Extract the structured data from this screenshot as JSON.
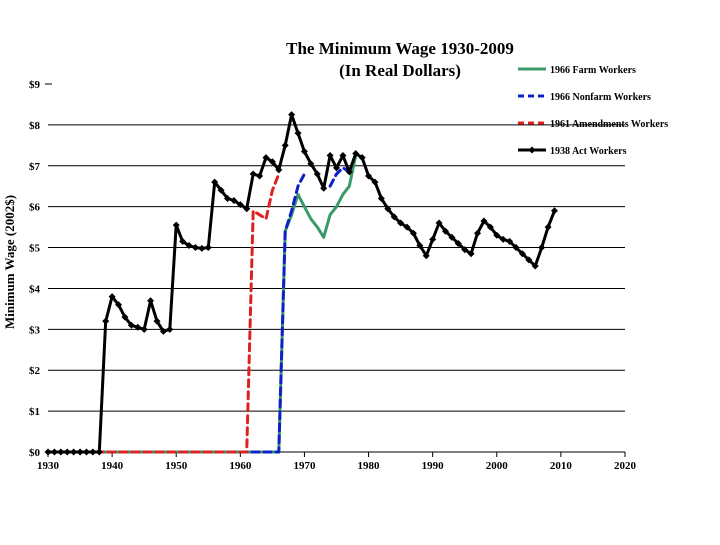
{
  "chart_data": {
    "type": "line",
    "title": "The Minimum Wage 1930-2009",
    "subtitle": "(In Real Dollars)",
    "xlabel": "",
    "ylabel": "Minimum Wage (2002$)",
    "xlim": [
      1930,
      2020
    ],
    "ylim": [
      0,
      9
    ],
    "xticks": [
      "1930",
      "1940",
      "1950",
      "1960",
      "1970",
      "1980",
      "1990",
      "2000",
      "2010",
      "2020"
    ],
    "yticks": [
      "$0",
      "$1",
      "$2",
      "$3",
      "$4",
      "$5",
      "$6",
      "$7",
      "$8",
      "$9"
    ],
    "grid": "horizontal",
    "legend_position": "top-right",
    "series": [
      {
        "name": "1966 Farm Workers",
        "color": "#3a9a6a",
        "style": "solid",
        "points": [
          [
            1930,
            0
          ],
          [
            1966,
            0
          ],
          [
            1967,
            5.4
          ],
          [
            1968,
            5.8
          ],
          [
            1969,
            6.3
          ],
          [
            1970,
            6.0
          ],
          [
            1971,
            5.7
          ],
          [
            1972,
            5.5
          ],
          [
            1973,
            5.25
          ],
          [
            1974,
            5.8
          ],
          [
            1975,
            6.0
          ],
          [
            1976,
            6.3
          ],
          [
            1977,
            6.5
          ],
          [
            1978,
            7.25
          ]
        ]
      },
      {
        "name": "1966 Nonfarm Workers",
        "color": "#1020c8",
        "style": "dashed",
        "points": [
          [
            1930,
            0
          ],
          [
            1966,
            0
          ],
          [
            1967,
            5.4
          ],
          [
            1968,
            5.9
          ],
          [
            1969,
            6.5
          ],
          [
            1970,
            6.8
          ],
          [
            1971,
            null
          ],
          [
            1974,
            6.5
          ],
          [
            1975,
            6.8
          ],
          [
            1976,
            6.95
          ],
          [
            1977,
            6.85
          ]
        ]
      },
      {
        "name": "1961 Amendments Workers",
        "color": "#dd2222",
        "style": "dashed",
        "points": [
          [
            1930,
            0
          ],
          [
            1961,
            0
          ],
          [
            1962,
            5.9
          ],
          [
            1963,
            5.8
          ],
          [
            1964,
            5.7
          ],
          [
            1965,
            6.4
          ],
          [
            1966,
            6.8
          ]
        ]
      },
      {
        "name": "1938 Act Workers",
        "color": "#000000",
        "style": "solid-markers",
        "points": [
          [
            1930,
            0
          ],
          [
            1931,
            0
          ],
          [
            1932,
            0
          ],
          [
            1933,
            0
          ],
          [
            1934,
            0
          ],
          [
            1935,
            0
          ],
          [
            1936,
            0
          ],
          [
            1937,
            0
          ],
          [
            1938,
            0
          ],
          [
            1939,
            3.2
          ],
          [
            1940,
            3.8
          ],
          [
            1941,
            3.6
          ],
          [
            1942,
            3.3
          ],
          [
            1943,
            3.1
          ],
          [
            1944,
            3.05
          ],
          [
            1945,
            3.0
          ],
          [
            1946,
            3.7
          ],
          [
            1947,
            3.2
          ],
          [
            1948,
            2.95
          ],
          [
            1949,
            3.0
          ],
          [
            1950,
            5.55
          ],
          [
            1951,
            5.15
          ],
          [
            1952,
            5.05
          ],
          [
            1953,
            5.0
          ],
          [
            1954,
            4.98
          ],
          [
            1955,
            5.0
          ],
          [
            1956,
            6.6
          ],
          [
            1957,
            6.4
          ],
          [
            1958,
            6.2
          ],
          [
            1959,
            6.15
          ],
          [
            1960,
            6.05
          ],
          [
            1961,
            5.95
          ],
          [
            1962,
            6.8
          ],
          [
            1963,
            6.75
          ],
          [
            1964,
            7.2
          ],
          [
            1965,
            7.1
          ],
          [
            1966,
            6.9
          ],
          [
            1967,
            7.5
          ],
          [
            1968,
            8.25
          ],
          [
            1969,
            7.8
          ],
          [
            1970,
            7.35
          ],
          [
            1971,
            7.05
          ],
          [
            1972,
            6.8
          ],
          [
            1973,
            6.45
          ],
          [
            1974,
            7.25
          ],
          [
            1975,
            6.95
          ],
          [
            1976,
            7.25
          ],
          [
            1977,
            6.85
          ],
          [
            1978,
            7.3
          ],
          [
            1979,
            7.2
          ],
          [
            1980,
            6.75
          ],
          [
            1981,
            6.6
          ],
          [
            1982,
            6.2
          ],
          [
            1983,
            5.95
          ],
          [
            1984,
            5.75
          ],
          [
            1985,
            5.6
          ],
          [
            1986,
            5.5
          ],
          [
            1987,
            5.35
          ],
          [
            1988,
            5.05
          ],
          [
            1989,
            4.8
          ],
          [
            1990,
            5.2
          ],
          [
            1991,
            5.6
          ],
          [
            1992,
            5.4
          ],
          [
            1993,
            5.25
          ],
          [
            1994,
            5.1
          ],
          [
            1995,
            4.95
          ],
          [
            1996,
            4.85
          ],
          [
            1997,
            5.35
          ],
          [
            1998,
            5.65
          ],
          [
            1999,
            5.5
          ],
          [
            2000,
            5.3
          ],
          [
            2001,
            5.2
          ],
          [
            2002,
            5.15
          ],
          [
            2003,
            5.0
          ],
          [
            2004,
            4.85
          ],
          [
            2005,
            4.7
          ],
          [
            2006,
            4.55
          ],
          [
            2007,
            5.0
          ],
          [
            2008,
            5.5
          ],
          [
            2009,
            5.9
          ]
        ]
      }
    ]
  }
}
